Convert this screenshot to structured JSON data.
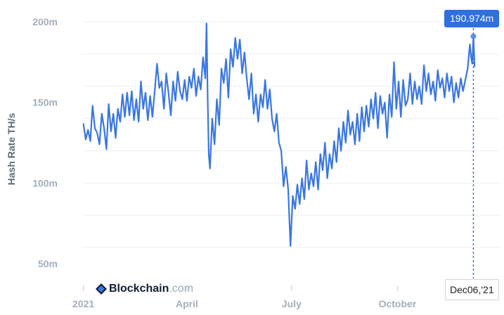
{
  "chart_data": {
    "type": "line",
    "ylabel": "Hash Rate TH/s",
    "ylim": [
      40,
      200
    ],
    "yticks": [
      {
        "value": 200,
        "label": "200m"
      },
      {
        "value": 150,
        "label": "150m"
      },
      {
        "value": 100,
        "label": "100m"
      },
      {
        "value": 50,
        "label": "50m"
      }
    ],
    "xlim": [
      "2020-12-31",
      "2021-12-10"
    ],
    "xticks": [
      {
        "date": "2021-01-01",
        "label": "2021"
      },
      {
        "date": "2021-04-01",
        "label": "April"
      },
      {
        "date": "2021-07-01",
        "label": "July"
      },
      {
        "date": "2021-10-01",
        "label": "October"
      }
    ],
    "grid": true,
    "line_color": "#3a76e3",
    "hover": {
      "date": "2021-12-06",
      "date_label": "Dec06,'21",
      "value": 190.974,
      "value_label": "190.974m"
    },
    "watermark": {
      "brand": "Blockchain",
      "suffix": ".com"
    },
    "series": [
      {
        "points": [
          [
            "2021-01-01",
            137
          ],
          [
            "2021-01-03",
            127
          ],
          [
            "2021-01-05",
            133
          ],
          [
            "2021-01-07",
            126
          ],
          [
            "2021-01-09",
            148
          ],
          [
            "2021-01-11",
            134
          ],
          [
            "2021-01-13",
            131
          ],
          [
            "2021-01-15",
            124
          ],
          [
            "2021-01-17",
            143
          ],
          [
            "2021-01-19",
            134
          ],
          [
            "2021-01-21",
            121
          ],
          [
            "2021-01-23",
            149
          ],
          [
            "2021-01-25",
            132
          ],
          [
            "2021-01-27",
            143
          ],
          [
            "2021-01-29",
            128
          ],
          [
            "2021-01-31",
            146
          ],
          [
            "2021-02-02",
            138
          ],
          [
            "2021-02-04",
            155
          ],
          [
            "2021-02-06",
            141
          ],
          [
            "2021-02-08",
            156
          ],
          [
            "2021-02-10",
            142
          ],
          [
            "2021-02-12",
            157
          ],
          [
            "2021-02-14",
            139
          ],
          [
            "2021-02-16",
            152
          ],
          [
            "2021-02-18",
            138
          ],
          [
            "2021-02-20",
            163
          ],
          [
            "2021-02-22",
            146
          ],
          [
            "2021-02-24",
            156
          ],
          [
            "2021-02-26",
            139
          ],
          [
            "2021-02-28",
            154
          ],
          [
            "2021-03-02",
            141
          ],
          [
            "2021-03-04",
            157
          ],
          [
            "2021-03-06",
            174
          ],
          [
            "2021-03-08",
            159
          ],
          [
            "2021-03-10",
            163
          ],
          [
            "2021-03-12",
            146
          ],
          [
            "2021-03-14",
            168
          ],
          [
            "2021-03-16",
            156
          ],
          [
            "2021-03-18",
            142
          ],
          [
            "2021-03-20",
            163
          ],
          [
            "2021-03-22",
            151
          ],
          [
            "2021-03-24",
            169
          ],
          [
            "2021-03-26",
            157
          ],
          [
            "2021-03-28",
            152
          ],
          [
            "2021-03-30",
            164
          ],
          [
            "2021-04-01",
            151
          ],
          [
            "2021-04-03",
            166
          ],
          [
            "2021-04-05",
            159
          ],
          [
            "2021-04-07",
            171
          ],
          [
            "2021-04-09",
            154
          ],
          [
            "2021-04-11",
            166
          ],
          [
            "2021-04-13",
            158
          ],
          [
            "2021-04-15",
            178
          ],
          [
            "2021-04-17",
            165
          ],
          [
            "2021-04-18",
            199
          ],
          [
            "2021-04-19",
            154
          ],
          [
            "2021-04-20",
            118
          ],
          [
            "2021-04-21",
            109
          ],
          [
            "2021-04-23",
            140
          ],
          [
            "2021-04-25",
            124
          ],
          [
            "2021-04-27",
            152
          ],
          [
            "2021-04-29",
            136
          ],
          [
            "2021-05-01",
            171
          ],
          [
            "2021-05-03",
            162
          ],
          [
            "2021-05-05",
            177
          ],
          [
            "2021-05-07",
            153
          ],
          [
            "2021-05-09",
            183
          ],
          [
            "2021-05-11",
            172
          ],
          [
            "2021-05-13",
            190
          ],
          [
            "2021-05-15",
            177
          ],
          [
            "2021-05-17",
            189
          ],
          [
            "2021-05-19",
            168
          ],
          [
            "2021-05-21",
            181
          ],
          [
            "2021-05-23",
            165
          ],
          [
            "2021-05-25",
            152
          ],
          [
            "2021-05-27",
            168
          ],
          [
            "2021-05-29",
            143
          ],
          [
            "2021-05-31",
            155
          ],
          [
            "2021-06-02",
            138
          ],
          [
            "2021-06-04",
            155
          ],
          [
            "2021-06-06",
            147
          ],
          [
            "2021-06-08",
            164
          ],
          [
            "2021-06-10",
            146
          ],
          [
            "2021-06-12",
            158
          ],
          [
            "2021-06-14",
            140
          ],
          [
            "2021-06-16",
            132
          ],
          [
            "2021-06-18",
            143
          ],
          [
            "2021-06-20",
            125
          ],
          [
            "2021-06-22",
            120
          ],
          [
            "2021-06-24",
            98
          ],
          [
            "2021-06-26",
            110
          ],
          [
            "2021-06-28",
            96
          ],
          [
            "2021-06-30",
            61
          ],
          [
            "2021-07-02",
            92
          ],
          [
            "2021-07-04",
            84
          ],
          [
            "2021-07-06",
            99
          ],
          [
            "2021-07-08",
            87
          ],
          [
            "2021-07-10",
            103
          ],
          [
            "2021-07-12",
            90
          ],
          [
            "2021-07-14",
            114
          ],
          [
            "2021-07-16",
            96
          ],
          [
            "2021-07-18",
            106
          ],
          [
            "2021-07-20",
            98
          ],
          [
            "2021-07-22",
            113
          ],
          [
            "2021-07-24",
            96
          ],
          [
            "2021-07-26",
            118
          ],
          [
            "2021-07-28",
            108
          ],
          [
            "2021-07-30",
            125
          ],
          [
            "2021-08-01",
            103
          ],
          [
            "2021-08-03",
            118
          ],
          [
            "2021-08-05",
            109
          ],
          [
            "2021-08-07",
            126
          ],
          [
            "2021-08-09",
            113
          ],
          [
            "2021-08-11",
            134
          ],
          [
            "2021-08-13",
            120
          ],
          [
            "2021-08-15",
            138
          ],
          [
            "2021-08-17",
            125
          ],
          [
            "2021-08-19",
            145
          ],
          [
            "2021-08-21",
            130
          ],
          [
            "2021-08-23",
            138
          ],
          [
            "2021-08-25",
            124
          ],
          [
            "2021-08-27",
            143
          ],
          [
            "2021-08-29",
            126
          ],
          [
            "2021-08-31",
            147
          ],
          [
            "2021-09-02",
            132
          ],
          [
            "2021-09-04",
            148
          ],
          [
            "2021-09-06",
            135
          ],
          [
            "2021-09-08",
            152
          ],
          [
            "2021-09-10",
            140
          ],
          [
            "2021-09-12",
            156
          ],
          [
            "2021-09-14",
            134
          ],
          [
            "2021-09-16",
            154
          ],
          [
            "2021-09-18",
            143
          ],
          [
            "2021-09-20",
            150
          ],
          [
            "2021-09-22",
            128
          ],
          [
            "2021-09-24",
            155
          ],
          [
            "2021-09-26",
            141
          ],
          [
            "2021-09-28",
            175
          ],
          [
            "2021-09-30",
            146
          ],
          [
            "2021-10-02",
            163
          ],
          [
            "2021-10-04",
            141
          ],
          [
            "2021-10-06",
            164
          ],
          [
            "2021-10-08",
            148
          ],
          [
            "2021-10-10",
            152
          ],
          [
            "2021-10-12",
            168
          ],
          [
            "2021-10-14",
            149
          ],
          [
            "2021-10-16",
            163
          ],
          [
            "2021-10-18",
            152
          ],
          [
            "2021-10-20",
            160
          ],
          [
            "2021-10-22",
            149
          ],
          [
            "2021-10-24",
            173
          ],
          [
            "2021-10-26",
            157
          ],
          [
            "2021-10-28",
            168
          ],
          [
            "2021-10-30",
            155
          ],
          [
            "2021-11-01",
            163
          ],
          [
            "2021-11-03",
            151
          ],
          [
            "2021-11-05",
            170
          ],
          [
            "2021-11-07",
            159
          ],
          [
            "2021-11-09",
            165
          ],
          [
            "2021-11-11",
            153
          ],
          [
            "2021-11-13",
            168
          ],
          [
            "2021-11-15",
            157
          ],
          [
            "2021-11-17",
            166
          ],
          [
            "2021-11-19",
            150
          ],
          [
            "2021-11-21",
            162
          ],
          [
            "2021-11-23",
            153
          ],
          [
            "2021-11-25",
            165
          ],
          [
            "2021-11-27",
            157
          ],
          [
            "2021-11-29",
            164
          ],
          [
            "2021-12-01",
            171
          ],
          [
            "2021-12-03",
            186
          ],
          [
            "2021-12-04",
            178
          ],
          [
            "2021-12-05",
            174
          ],
          [
            "2021-12-06",
            191
          ],
          [
            "2021-12-07",
            172
          ]
        ]
      }
    ]
  }
}
